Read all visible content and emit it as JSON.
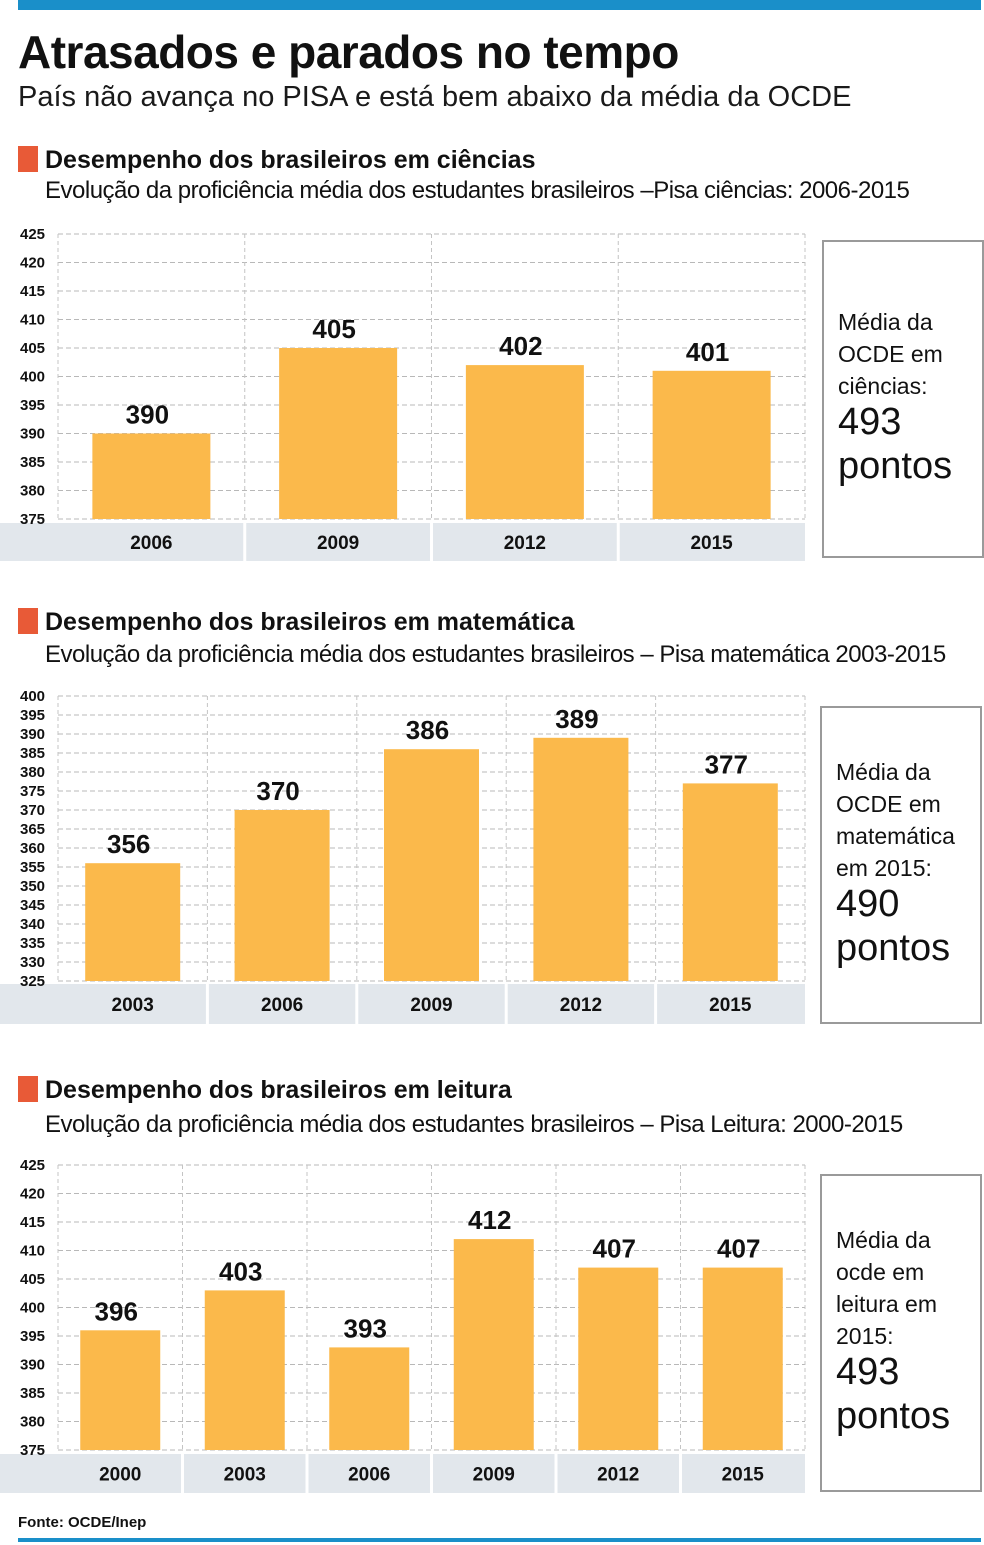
{
  "header": {
    "title": "Atrasados e parados no tempo",
    "subtitle": "País não avança no PISA e está bem abaixo da média da OCDE"
  },
  "sections": [
    {
      "title": "Desempenho dos brasileiros em ciências",
      "subtitle": "Evolução da proficiência média dos estudantes brasileiros –Pisa ciências: 2006-2015",
      "avg_text": "Média da\nOCDE em\nciências:",
      "avg_value": "493\npontos"
    },
    {
      "title": "Desempenho dos brasileiros em matemática",
      "subtitle": "Evolução da proficiência média dos estudantes brasileiros – Pisa matemática 2003-2015",
      "avg_text": "Média da\nOCDE em\nmatemática\nem 2015:",
      "avg_value": "490\npontos"
    },
    {
      "title": "Desempenho dos brasileiros em leitura",
      "subtitle": "Evolução da proficiência média dos estudantes brasileiros – Pisa Leitura: 2000-2015",
      "avg_text": "Média da\nocde em\nleitura em\n2015:",
      "avg_value": "493\npontos"
    }
  ],
  "chart_data": [
    {
      "type": "bar",
      "title": "Desempenho dos brasileiros em ciências",
      "categories": [
        "2006",
        "2009",
        "2012",
        "2015"
      ],
      "values": [
        390,
        405,
        402,
        401
      ],
      "ylim": [
        375,
        425
      ],
      "yticks": [
        375,
        380,
        385,
        390,
        395,
        400,
        405,
        410,
        415,
        420,
        425
      ],
      "grid": true,
      "bar_color": "#fbb94b"
    },
    {
      "type": "bar",
      "title": "Desempenho dos brasileiros em matemática",
      "categories": [
        "2003",
        "2006",
        "2009",
        "2012",
        "2015"
      ],
      "values": [
        356,
        370,
        386,
        389,
        377
      ],
      "ylim": [
        325,
        400
      ],
      "yticks": [
        325,
        330,
        335,
        340,
        345,
        350,
        355,
        360,
        365,
        370,
        375,
        380,
        385,
        390,
        395,
        400
      ],
      "grid": true,
      "bar_color": "#fbb94b"
    },
    {
      "type": "bar",
      "title": "Desempenho dos brasileiros em leitura",
      "categories": [
        "2000",
        "2003",
        "2006",
        "2009",
        "2012",
        "2015"
      ],
      "values": [
        396,
        403,
        393,
        412,
        407,
        407
      ],
      "ylim": [
        375,
        425
      ],
      "yticks": [
        375,
        380,
        385,
        390,
        395,
        400,
        405,
        410,
        415,
        420,
        425
      ],
      "grid": true,
      "bar_color": "#fbb94b"
    }
  ],
  "footer": {
    "source": "Fonte: OCDE/Inep"
  }
}
